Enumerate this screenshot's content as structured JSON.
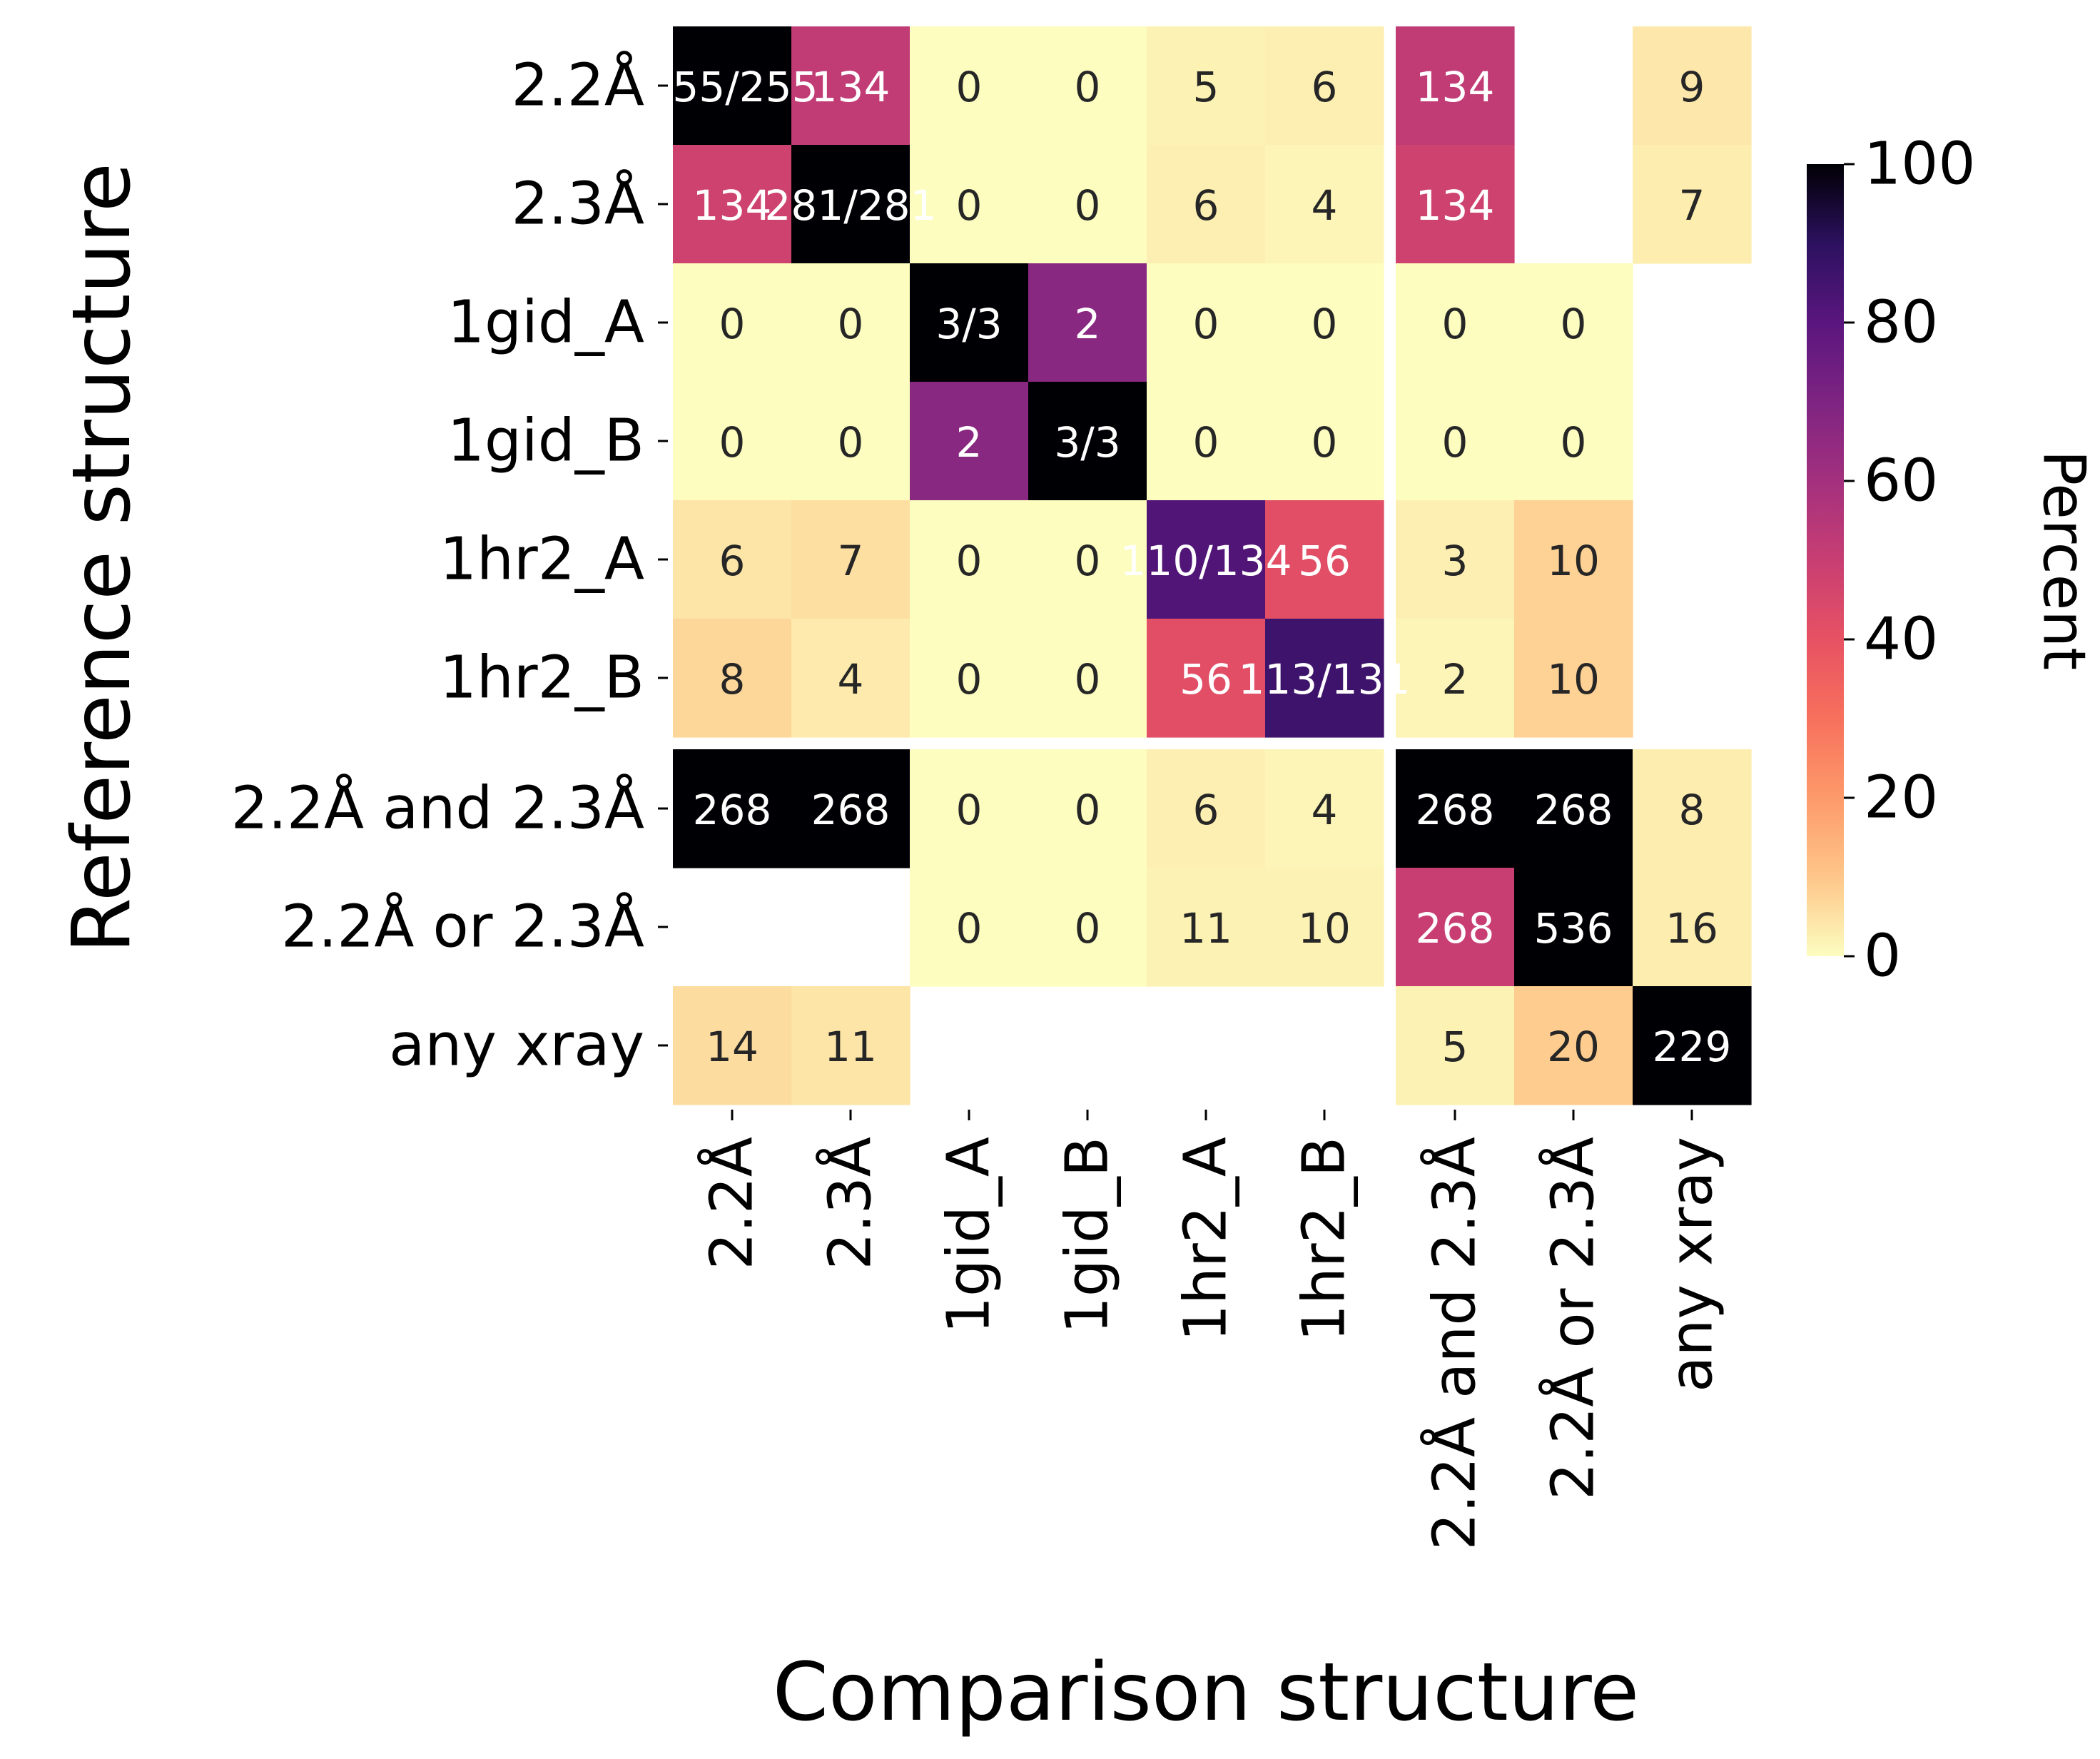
{
  "chart_data": {
    "type": "heatmap",
    "xlabel": "Comparison structure",
    "ylabel": "Reference structure",
    "row_labels": [
      "2.2Å",
      "2.3Å",
      "1gid_A",
      "1gid_B",
      "1hr2_A",
      "1hr2_B",
      "2.2Å and 2.3Å",
      "2.2Å or 2.3Å",
      "any xray"
    ],
    "col_labels": [
      "2.2Å",
      "2.3Å",
      "1gid_A",
      "1gid_B",
      "1hr2_A",
      "1hr2_B",
      "2.2Å and 2.3Å",
      "2.2Å or 2.3Å",
      "any xray"
    ],
    "percent": [
      [
        100,
        52,
        0,
        0,
        2,
        2.5,
        52,
        null,
        4
      ],
      [
        48,
        100,
        0,
        0,
        2.5,
        1.5,
        48,
        null,
        3
      ],
      [
        0,
        0,
        100,
        67,
        0,
        0,
        0,
        0,
        null
      ],
      [
        0,
        0,
        67,
        100,
        0,
        0,
        0,
        0,
        null
      ],
      [
        4.5,
        5.5,
        0,
        0,
        82,
        42,
        2.5,
        8,
        null
      ],
      [
        7,
        3.5,
        0,
        0,
        42,
        86,
        1.5,
        8,
        null
      ],
      [
        100,
        100,
        0,
        0,
        2.5,
        1.5,
        100,
        100,
        3
      ],
      [
        null,
        null,
        0,
        0,
        2,
        2,
        50,
        100,
        3
      ],
      [
        6,
        4.5,
        null,
        null,
        null,
        null,
        2,
        9,
        100
      ]
    ],
    "annotations": [
      [
        "255/255",
        "134",
        "0",
        "0",
        "5",
        "6",
        "134",
        "",
        "9"
      ],
      [
        "134",
        "281/281",
        "0",
        "0",
        "6",
        "4",
        "134",
        "",
        "7"
      ],
      [
        "0",
        "0",
        "3/3",
        "2",
        "0",
        "0",
        "0",
        "0",
        ""
      ],
      [
        "0",
        "0",
        "2",
        "3/3",
        "0",
        "0",
        "0",
        "0",
        ""
      ],
      [
        "6",
        "7",
        "0",
        "0",
        "110/134",
        "56",
        "3",
        "10",
        ""
      ],
      [
        "8",
        "4",
        "0",
        "0",
        "56",
        "113/131",
        "2",
        "10",
        ""
      ],
      [
        "268",
        "268",
        "0",
        "0",
        "6",
        "4",
        "268",
        "268",
        "8"
      ],
      [
        "",
        "",
        "0",
        "0",
        "11",
        "10",
        "268",
        "536",
        "16"
      ],
      [
        "14",
        "11",
        "",
        "",
        "",
        "",
        "5",
        "20",
        "229"
      ]
    ],
    "colorbar": {
      "label": "Percent",
      "range": [
        0,
        100
      ],
      "ticks": [
        "0",
        "20",
        "40",
        "60",
        "80",
        "100"
      ],
      "colormap": "magma_r"
    }
  }
}
